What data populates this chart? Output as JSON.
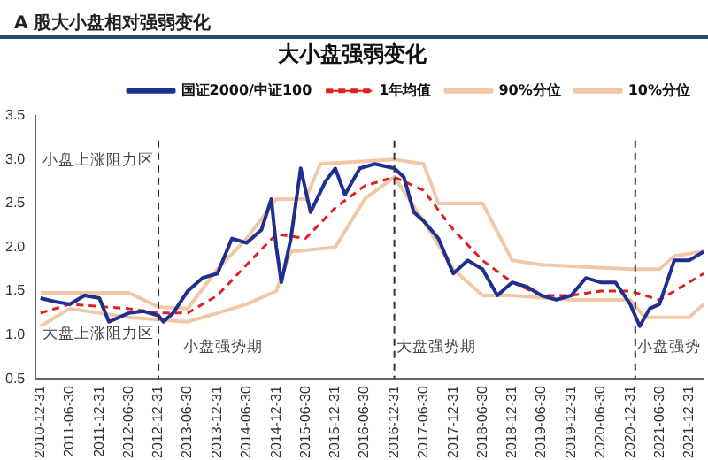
{
  "chart_data": {
    "type": "line",
    "title": "A 股大小盘相对强弱变化",
    "subtitle": "大小盘强弱变化",
    "xlim": [
      "2010-12-01",
      "2022-03-31"
    ],
    "xticks": [
      "2010-12-31",
      "2011-06-30",
      "2011-12-31",
      "2012-06-30",
      "2012-12-31",
      "2013-06-30",
      "2013-12-31",
      "2014-06-30",
      "2014-12-31",
      "2015-06-30",
      "2015-12-31",
      "2016-06-30",
      "2016-12-31",
      "2017-06-30",
      "2017-12-31",
      "2018-06-30",
      "2018-12-31",
      "2019-06-30",
      "2019-12-31",
      "2020-06-30",
      "2020-12-31",
      "2021-06-30",
      "2021-12-31"
    ],
    "ylim": [
      0.5,
      3.5
    ],
    "yticks": [
      {
        "value": 0.5,
        "label": "0.5"
      },
      {
        "value": 1,
        "label": "1.0"
      },
      {
        "value": 1.5,
        "label": "1.5"
      },
      {
        "value": 2,
        "label": "2.0"
      },
      {
        "value": 2.5,
        "label": "2.5"
      },
      {
        "value": 3,
        "label": "3.0"
      },
      {
        "value": 3.5,
        "label": "3.5"
      }
    ],
    "grid": false,
    "legend": "top",
    "marker": "none",
    "series": [
      {
        "name": "国证2000/中证100",
        "color": "#1f2f8f",
        "line_style": "solid",
        "x": [
          "2010-12-31",
          "2011-03-31",
          "2011-06-30",
          "2011-09-30",
          "2011-12-31",
          "2012-02-28",
          "2012-06-30",
          "2012-09-30",
          "2012-12-31",
          "2013-01-31",
          "2013-03-31",
          "2013-06-30",
          "2013-09-30",
          "2013-12-31",
          "2014-03-31",
          "2014-06-30",
          "2014-09-30",
          "2014-11-30",
          "2014-12-31",
          "2015-01-31",
          "2015-03-31",
          "2015-05-31",
          "2015-07-31",
          "2015-10-31",
          "2015-12-31",
          "2016-02-29",
          "2016-05-31",
          "2016-08-31",
          "2016-12-31",
          "2017-02-28",
          "2017-04-30",
          "2017-06-30",
          "2017-09-30",
          "2017-12-31",
          "2018-03-31",
          "2018-06-30",
          "2018-09-30",
          "2018-12-31",
          "2019-03-31",
          "2019-06-30",
          "2019-09-30",
          "2019-12-31",
          "2020-03-31",
          "2020-06-30",
          "2020-09-30",
          "2020-12-31",
          "2021-02-28",
          "2021-04-30",
          "2021-06-30",
          "2021-09-30",
          "2021-12-31",
          "2022-03-31"
        ],
        "values": [
          1.42,
          1.38,
          1.35,
          1.45,
          1.42,
          1.15,
          1.25,
          1.27,
          1.22,
          1.15,
          1.25,
          1.5,
          1.65,
          1.7,
          2.1,
          2.05,
          2.2,
          2.55,
          2.0,
          1.6,
          2.1,
          2.9,
          2.4,
          2.75,
          2.9,
          2.6,
          2.9,
          2.95,
          2.9,
          2.8,
          2.4,
          2.3,
          2.1,
          1.7,
          1.85,
          1.75,
          1.45,
          1.6,
          1.55,
          1.45,
          1.4,
          1.45,
          1.65,
          1.6,
          1.6,
          1.35,
          1.1,
          1.3,
          1.35,
          1.85,
          1.85,
          1.95
        ]
      },
      {
        "name": "1年均值",
        "color": "#e02020",
        "line_style": "dashed",
        "x": [
          "2010-12-31",
          "2011-06-30",
          "2012-06-30",
          "2012-12-31",
          "2013-06-30",
          "2013-12-31",
          "2014-06-30",
          "2014-12-31",
          "2015-06-30",
          "2015-12-31",
          "2016-06-30",
          "2016-12-31",
          "2017-06-30",
          "2017-12-31",
          "2018-06-30",
          "2018-12-31",
          "2019-06-30",
          "2019-12-31",
          "2020-06-30",
          "2020-12-31",
          "2021-06-30",
          "2021-12-31",
          "2022-03-31"
        ],
        "values": [
          1.25,
          1.35,
          1.3,
          1.25,
          1.25,
          1.45,
          1.8,
          2.15,
          2.1,
          2.45,
          2.7,
          2.8,
          2.65,
          2.2,
          1.85,
          1.6,
          1.45,
          1.45,
          1.5,
          1.5,
          1.4,
          1.6,
          1.7
        ]
      },
      {
        "name": "90%分位",
        "color": "#f0c8a8",
        "line_style": "solid",
        "x": [
          "2010-12-31",
          "2012-06-30",
          "2012-12-31",
          "2013-06-30",
          "2013-12-31",
          "2014-06-30",
          "2014-12-31",
          "2015-06-30",
          "2015-09-30",
          "2016-12-31",
          "2017-06-30",
          "2017-09-30",
          "2018-06-30",
          "2018-12-31",
          "2019-06-30",
          "2020-12-31",
          "2021-06-30",
          "2021-09-30",
          "2022-03-31"
        ],
        "values": [
          1.48,
          1.48,
          1.32,
          1.3,
          1.75,
          2.1,
          2.55,
          2.55,
          2.95,
          3.0,
          2.95,
          2.5,
          2.5,
          1.85,
          1.8,
          1.75,
          1.75,
          1.9,
          1.95
        ]
      },
      {
        "name": "10%分位",
        "color": "#f0c8a8",
        "line_style": "solid",
        "x": [
          "2010-12-31",
          "2011-06-30",
          "2012-06-30",
          "2013-06-30",
          "2013-12-31",
          "2014-06-30",
          "2014-12-31",
          "2015-03-31",
          "2015-12-31",
          "2016-06-30",
          "2016-12-31",
          "2017-06-30",
          "2017-12-31",
          "2018-06-30",
          "2018-12-31",
          "2019-12-31",
          "2020-12-31",
          "2021-03-31",
          "2021-12-31",
          "2022-03-31"
        ],
        "values": [
          1.1,
          1.3,
          1.2,
          1.15,
          1.25,
          1.35,
          1.5,
          1.95,
          2.0,
          2.55,
          2.8,
          2.3,
          1.75,
          1.45,
          1.45,
          1.4,
          1.4,
          1.2,
          1.2,
          1.35
        ]
      }
    ],
    "ref_lines": [
      {
        "axis": "x",
        "value": "2012-12-31",
        "color": "#333333",
        "line_style": "dashed"
      },
      {
        "axis": "x",
        "value": "2016-12-31",
        "color": "#333333",
        "line_style": "dashed"
      },
      {
        "axis": "x",
        "value": "2021-01-31",
        "color": "#333333",
        "line_style": "dashed"
      }
    ],
    "annotations": [
      "小盘上涨阻力区",
      "大盘上涨阻力区",
      "小盘强势期",
      "大盘强势期",
      "小盘强势"
    ]
  }
}
